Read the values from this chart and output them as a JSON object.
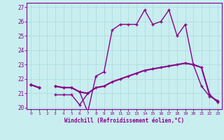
{
  "xlabel": "Windchill (Refroidissement éolien,°C)",
  "background_color": "#c8eef0",
  "grid_color": "#b0dde0",
  "line_color": "#880088",
  "x": [
    0,
    1,
    2,
    3,
    4,
    5,
    6,
    7,
    8,
    9,
    10,
    11,
    12,
    13,
    14,
    15,
    16,
    17,
    18,
    19,
    20,
    21,
    22,
    23
  ],
  "line_upper": [
    21.6,
    21.4,
    null,
    21.5,
    21.4,
    21.4,
    21.1,
    19.7,
    22.2,
    22.5,
    25.4,
    25.8,
    25.8,
    25.8,
    26.8,
    25.8,
    26.0,
    26.8,
    25.0,
    25.8,
    23.0,
    21.5,
    20.8,
    20.5
  ],
  "line_mid": [
    21.6,
    21.4,
    null,
    21.5,
    21.4,
    21.4,
    21.1,
    21.0,
    21.4,
    21.5,
    21.8,
    22.0,
    22.2,
    22.4,
    22.6,
    22.7,
    22.8,
    22.9,
    23.0,
    23.1,
    23.0,
    22.8,
    20.9,
    20.4
  ],
  "line_lower": [
    21.6,
    21.4,
    null,
    20.9,
    20.9,
    20.9,
    20.2,
    21.0,
    null,
    null,
    null,
    null,
    null,
    null,
    null,
    null,
    null,
    null,
    null,
    null,
    null,
    null,
    null,
    null
  ],
  "ylim": [
    19.9,
    27.3
  ],
  "xlim_min": -0.5,
  "xlim_max": 23.5,
  "yticks": [
    20,
    21,
    22,
    23,
    24,
    25,
    26,
    27
  ],
  "xticks": [
    0,
    1,
    2,
    3,
    4,
    5,
    6,
    7,
    8,
    9,
    10,
    11,
    12,
    13,
    14,
    15,
    16,
    17,
    18,
    19,
    20,
    21,
    22,
    23
  ]
}
